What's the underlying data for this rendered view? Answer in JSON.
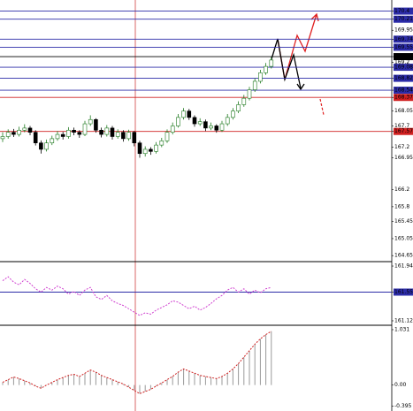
{
  "chart_data": [
    {
      "type": "candlestick",
      "ylim": [
        164.55,
        170.62
      ],
      "yticks": [
        170.4,
        170.21,
        169.95,
        169.74,
        169.55,
        169.33,
        169.2,
        169.08,
        168.82,
        168.54,
        168.37,
        168.05,
        167.7,
        167.57,
        167.2,
        166.95,
        166.2,
        165.8,
        165.45,
        165.05,
        164.65
      ],
      "levels": [
        {
          "value": 170.4,
          "color": "#2c2ca8"
        },
        {
          "value": 170.21,
          "color": "#2c2ca8"
        },
        {
          "value": 169.74,
          "color": "#2c2ca8"
        },
        {
          "value": 169.55,
          "color": "#2c2ca8"
        },
        {
          "value": 169.33,
          "color": "#000000"
        },
        {
          "value": 169.08,
          "color": "#2c2ca8"
        },
        {
          "value": 168.82,
          "color": "#2c2ca8"
        },
        {
          "value": 168.54,
          "color": "#2c2ca8"
        },
        {
          "value": 168.37,
          "color": "#d02020"
        },
        {
          "value": 167.57,
          "color": "#d02020"
        }
      ],
      "up_color": "#1f7a1f",
      "down_color": "#000000",
      "open": [
        167.4,
        167.45,
        167.55,
        167.5,
        167.6,
        167.65,
        167.55,
        167.3,
        167.15,
        167.3,
        167.4,
        167.5,
        167.45,
        167.6,
        167.55,
        167.5,
        167.75,
        167.85,
        167.6,
        167.5,
        167.65,
        167.45,
        167.55,
        167.4,
        167.55,
        167.3,
        167.05,
        167.15,
        167.1,
        167.25,
        167.35,
        167.55,
        167.7,
        167.9,
        168.05,
        167.9,
        167.75,
        167.8,
        167.65,
        167.7,
        167.6,
        167.75,
        167.9,
        168.05,
        168.2,
        168.35,
        168.55,
        168.75,
        168.95,
        169.1
      ],
      "high": [
        167.55,
        167.62,
        167.63,
        167.68,
        167.74,
        167.7,
        167.6,
        167.36,
        167.38,
        167.47,
        167.58,
        167.56,
        167.67,
        167.66,
        167.6,
        167.82,
        167.95,
        167.88,
        167.66,
        167.72,
        167.7,
        167.62,
        167.6,
        167.61,
        167.58,
        167.35,
        167.22,
        167.2,
        167.32,
        167.42,
        167.62,
        167.78,
        167.98,
        168.12,
        168.1,
        167.95,
        167.88,
        167.85,
        167.78,
        167.74,
        167.82,
        167.98,
        168.12,
        168.28,
        168.43,
        168.62,
        168.82,
        169.02,
        169.18,
        169.32
      ],
      "low": [
        167.32,
        167.4,
        167.44,
        167.45,
        167.55,
        167.48,
        167.24,
        167.05,
        167.1,
        167.25,
        167.35,
        167.38,
        167.4,
        167.48,
        167.42,
        167.46,
        167.7,
        167.54,
        167.43,
        167.45,
        167.38,
        167.4,
        167.33,
        167.35,
        167.22,
        166.95,
        166.98,
        167.02,
        167.05,
        167.2,
        167.3,
        167.5,
        167.66,
        167.85,
        167.84,
        167.68,
        167.7,
        167.58,
        167.6,
        167.54,
        167.56,
        167.7,
        167.85,
        168.0,
        168.15,
        168.3,
        168.5,
        168.7,
        168.9,
        169.05
      ],
      "close": [
        167.45,
        167.55,
        167.5,
        167.6,
        167.65,
        167.55,
        167.3,
        167.15,
        167.3,
        167.4,
        167.5,
        167.45,
        167.6,
        167.55,
        167.5,
        167.75,
        167.85,
        167.6,
        167.5,
        167.65,
        167.45,
        167.55,
        167.4,
        167.55,
        167.3,
        167.05,
        167.15,
        167.1,
        167.25,
        167.35,
        167.55,
        167.7,
        167.9,
        168.05,
        167.9,
        167.75,
        167.8,
        167.65,
        167.7,
        167.6,
        167.75,
        167.9,
        168.05,
        168.2,
        168.35,
        168.55,
        168.75,
        168.95,
        169.1,
        169.25
      ]
    },
    {
      "type": "line",
      "ylim": [
        161.08,
        161.98
      ],
      "yticks": [
        161.94,
        161.55,
        161.12
      ],
      "levels": [
        {
          "value": 161.55,
          "color": "#2c2ca8"
        }
      ],
      "color": "#d040d0",
      "values": [
        161.72,
        161.78,
        161.7,
        161.66,
        161.74,
        161.68,
        161.6,
        161.55,
        161.62,
        161.58,
        161.64,
        161.6,
        161.52,
        161.56,
        161.5,
        161.58,
        161.62,
        161.48,
        161.44,
        161.5,
        161.42,
        161.38,
        161.35,
        161.3,
        161.25,
        161.2,
        161.24,
        161.22,
        161.28,
        161.32,
        161.36,
        161.42,
        161.4,
        161.35,
        161.3,
        161.34,
        161.28,
        161.32,
        161.38,
        161.45,
        161.5,
        161.58,
        161.62,
        161.55,
        161.6,
        161.52,
        161.58,
        161.54,
        161.6,
        161.62
      ]
    },
    {
      "type": "bar",
      "ylim": [
        -0.45,
        1.08
      ],
      "yticks": [
        1.031,
        {
          "value": 0,
          "label": "0.00"
        },
        -0.395
      ],
      "color": "#999999",
      "line_color": "#d02020",
      "values": [
        0.05,
        0.1,
        0.15,
        0.12,
        0.08,
        0.04,
        -0.02,
        -0.06,
        0.0,
        0.05,
        0.1,
        0.14,
        0.18,
        0.2,
        0.16,
        0.22,
        0.28,
        0.24,
        0.18,
        0.14,
        0.1,
        0.06,
        0.02,
        -0.04,
        -0.1,
        -0.16,
        -0.12,
        -0.08,
        -0.02,
        0.04,
        0.1,
        0.16,
        0.24,
        0.3,
        0.26,
        0.22,
        0.18,
        0.16,
        0.14,
        0.12,
        0.16,
        0.22,
        0.3,
        0.4,
        0.52,
        0.64,
        0.76,
        0.86,
        0.94,
        1.0
      ]
    }
  ]
}
